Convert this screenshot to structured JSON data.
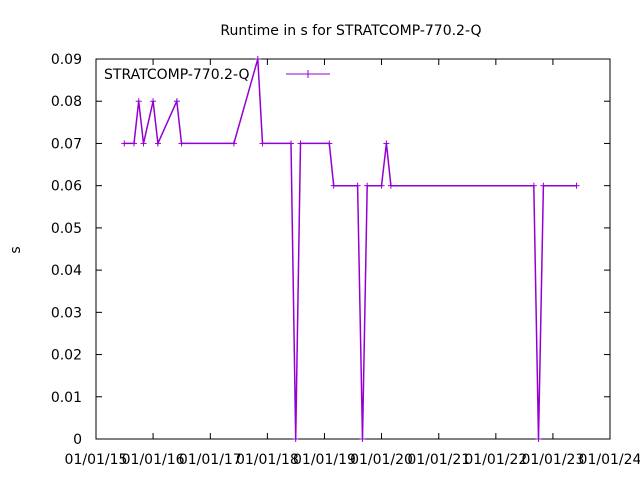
{
  "chart_data": {
    "type": "line",
    "title": "Runtime in s for STRATCOMP-770.2-Q",
    "xlabel": "",
    "ylabel": "s",
    "ylim": [
      0,
      0.09
    ],
    "yticks": [
      "0",
      "0.01",
      "0.02",
      "0.03",
      "0.04",
      "0.05",
      "0.06",
      "0.07",
      "0.08",
      "0.09"
    ],
    "xlim": [
      "2015-01-01",
      "2024-01-01"
    ],
    "xticks": [
      "01/01/15",
      "01/01/16",
      "01/01/17",
      "01/01/18",
      "01/01/19",
      "01/01/20",
      "01/01/21",
      "01/01/22",
      "01/01/23",
      "01/01/24"
    ],
    "grid": false,
    "legend_position": "top-left",
    "series": [
      {
        "name": "STRATCOMP-770.2-Q",
        "color": "#9400d3",
        "points": [
          {
            "x": "2015-07-01",
            "y": 0.07
          },
          {
            "x": "2015-09-01",
            "y": 0.07
          },
          {
            "x": "2015-10-01",
            "y": 0.08
          },
          {
            "x": "2015-11-01",
            "y": 0.07
          },
          {
            "x": "2016-01-01",
            "y": 0.08
          },
          {
            "x": "2016-02-01",
            "y": 0.07
          },
          {
            "x": "2016-06-01",
            "y": 0.08
          },
          {
            "x": "2016-07-01",
            "y": 0.07
          },
          {
            "x": "2017-06-01",
            "y": 0.07
          },
          {
            "x": "2017-11-01",
            "y": 0.09
          },
          {
            "x": "2017-12-01",
            "y": 0.07
          },
          {
            "x": "2018-06-01",
            "y": 0.07
          },
          {
            "x": "2018-07-01",
            "y": 0.0
          },
          {
            "x": "2018-08-01",
            "y": 0.07
          },
          {
            "x": "2019-02-01",
            "y": 0.07
          },
          {
            "x": "2019-03-01",
            "y": 0.06
          },
          {
            "x": "2019-08-01",
            "y": 0.06
          },
          {
            "x": "2019-09-01",
            "y": 0.0
          },
          {
            "x": "2019-10-01",
            "y": 0.06
          },
          {
            "x": "2020-01-01",
            "y": 0.06
          },
          {
            "x": "2020-02-01",
            "y": 0.07
          },
          {
            "x": "2020-03-01",
            "y": 0.06
          },
          {
            "x": "2022-09-01",
            "y": 0.06
          },
          {
            "x": "2022-10-01",
            "y": 0.0
          },
          {
            "x": "2022-11-01",
            "y": 0.06
          },
          {
            "x": "2023-06-01",
            "y": 0.06
          }
        ]
      }
    ]
  }
}
